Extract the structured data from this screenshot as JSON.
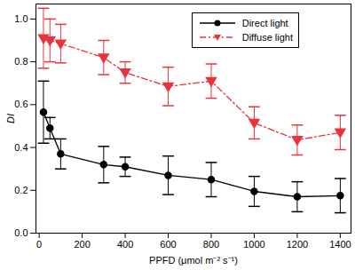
{
  "chart_data": {
    "type": "line",
    "x_label": "PPFD (μmol m⁻² s⁻¹)",
    "y_label": "DI",
    "x": [
      20,
      50,
      100,
      300,
      400,
      600,
      800,
      1000,
      1200,
      1400
    ],
    "series": [
      {
        "name": "Direct light",
        "color": "#000000",
        "marker": "circle",
        "line_style": "solid",
        "values": [
          0.565,
          0.49,
          0.37,
          0.32,
          0.31,
          0.27,
          0.25,
          0.195,
          0.17,
          0.175
        ],
        "errors": [
          0.145,
          0.05,
          0.07,
          0.085,
          0.045,
          0.09,
          0.08,
          0.07,
          0.07,
          0.08
        ]
      },
      {
        "name": "Diffuse light",
        "color": "#e8343a",
        "marker": "triangle-down",
        "line_style": "dashdot",
        "values": [
          0.91,
          0.9,
          0.885,
          0.82,
          0.75,
          0.685,
          0.71,
          0.515,
          0.435,
          0.47
        ],
        "errors": [
          0.14,
          0.1,
          0.09,
          0.08,
          0.05,
          0.09,
          0.08,
          0.075,
          0.07,
          0.08
        ]
      }
    ],
    "xlim": [
      -15,
      1450
    ],
    "xticks": [
      0,
      200,
      400,
      600,
      800,
      1000,
      1200,
      1400
    ],
    "ylim": [
      0,
      1.07
    ],
    "yticks": [
      {
        "value": 0,
        "label": "0.0"
      },
      0.2,
      0.4,
      0.6,
      0.8,
      {
        "value": 1,
        "label": "1.0"
      }
    ],
    "grid": false,
    "legend": "upper right"
  }
}
